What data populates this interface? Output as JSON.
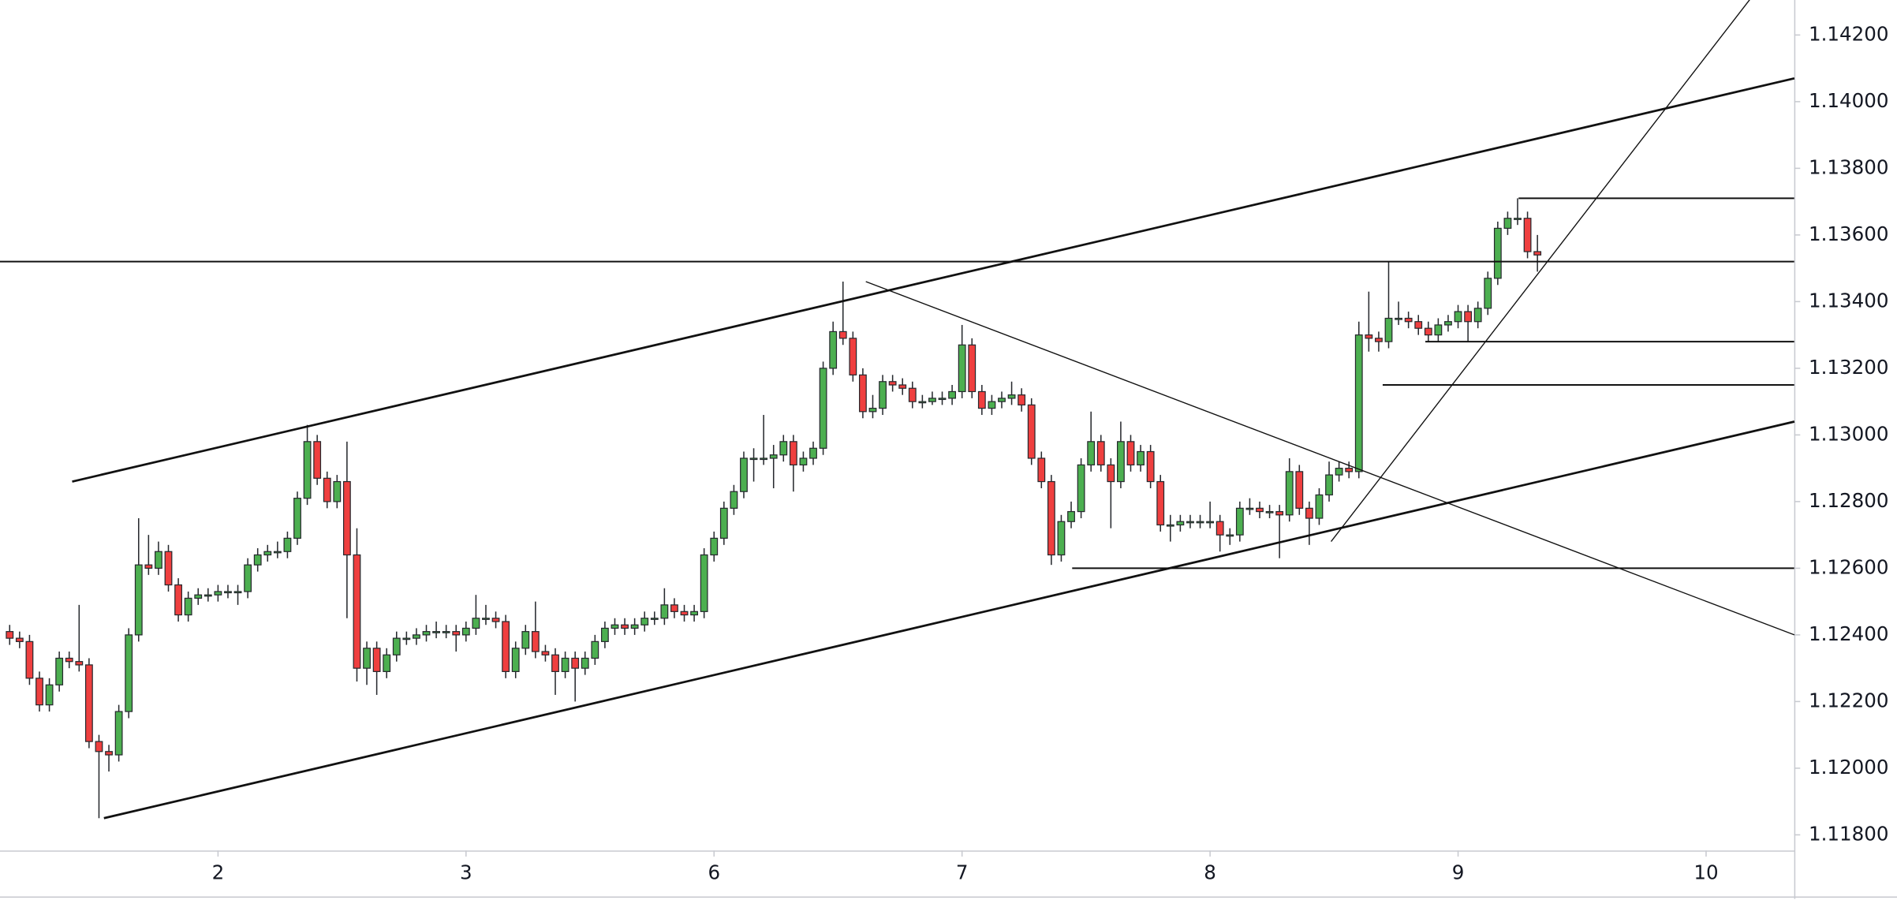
{
  "chart_data": {
    "type": "candlestick",
    "up_color": "#4caf50",
    "down_color": "#ef3f3f",
    "ylim": [
      1.11753,
      1.14305
    ],
    "yticks": [
      {
        "value": 1.118,
        "label": "1.11800"
      },
      {
        "value": 1.12,
        "label": "1.12000"
      },
      {
        "value": 1.122,
        "label": "1.12200"
      },
      {
        "value": 1.124,
        "label": "1.12400"
      },
      {
        "value": 1.126,
        "label": "1.12600"
      },
      {
        "value": 1.128,
        "label": "1.12800"
      },
      {
        "value": 1.13,
        "label": "1.13000"
      },
      {
        "value": 1.132,
        "label": "1.13200"
      },
      {
        "value": 1.134,
        "label": "1.13400"
      },
      {
        "value": 1.136,
        "label": "1.13600"
      },
      {
        "value": 1.138,
        "label": "1.13800"
      },
      {
        "value": 1.14,
        "label": "1.14000"
      },
      {
        "value": 1.142,
        "label": "1.14200"
      }
    ],
    "categories": [
      null,
      null,
      null,
      null,
      null,
      null,
      null,
      null,
      null,
      null,
      null,
      null,
      null,
      null,
      null,
      null,
      null,
      null,
      null,
      null,
      null,
      "2",
      null,
      null,
      null,
      null,
      null,
      null,
      null,
      null,
      null,
      null,
      null,
      null,
      null,
      null,
      null,
      null,
      null,
      null,
      null,
      null,
      null,
      null,
      null,
      null,
      "3",
      null,
      null,
      null,
      null,
      null,
      null,
      null,
      null,
      null,
      null,
      null,
      null,
      null,
      null,
      null,
      null,
      null,
      null,
      null,
      null,
      null,
      null,
      null,
      null,
      "6",
      null,
      null,
      null,
      null,
      null,
      null,
      null,
      null,
      null,
      null,
      null,
      null,
      null,
      null,
      null,
      null,
      null,
      null,
      null,
      null,
      null,
      null,
      null,
      null,
      "7",
      null,
      null,
      null,
      null,
      null,
      null,
      null,
      null,
      null,
      null,
      null,
      null,
      null,
      null,
      null,
      null,
      null,
      null,
      null,
      null,
      null,
      null,
      null,
      null,
      "8",
      null,
      null,
      null,
      null,
      null,
      null,
      null,
      null,
      null,
      null,
      null,
      null,
      null,
      null,
      null,
      null,
      null,
      null,
      null,
      null,
      null,
      null,
      null,
      null,
      "9",
      null,
      null,
      null,
      null,
      null,
      null,
      null,
      null,
      null,
      null,
      null,
      null,
      null,
      null,
      null,
      null,
      null,
      null,
      null,
      null,
      null,
      null,
      null,
      null,
      "10",
      null,
      null,
      null,
      null,
      null,
      null,
      null,
      null
    ],
    "ohlc": [
      [
        1.1241,
        1.1243,
        1.1237,
        1.1239
      ],
      [
        1.1239,
        1.1241,
        1.1236,
        1.1238
      ],
      [
        1.1238,
        1.124,
        1.1225,
        1.1227
      ],
      [
        1.1227,
        1.1229,
        1.1217,
        1.1219
      ],
      [
        1.1219,
        1.1227,
        1.1217,
        1.1225
      ],
      [
        1.1225,
        1.1235,
        1.1223,
        1.1233
      ],
      [
        1.1233,
        1.1235,
        1.123,
        1.1232
      ],
      [
        1.1232,
        1.1249,
        1.1229,
        1.1231
      ],
      [
        1.1231,
        1.1233,
        1.1206,
        1.1208
      ],
      [
        1.1208,
        1.121,
        1.1185,
        1.1205
      ],
      [
        1.1205,
        1.1207,
        1.1199,
        1.1204
      ],
      [
        1.1204,
        1.1219,
        1.1202,
        1.1217
      ],
      [
        1.1217,
        1.1242,
        1.1215,
        1.124
      ],
      [
        1.124,
        1.1275,
        1.1238,
        1.1261
      ],
      [
        1.1261,
        1.127,
        1.1258,
        1.126
      ],
      [
        1.126,
        1.1268,
        1.1258,
        1.1265
      ],
      [
        1.1265,
        1.1267,
        1.1253,
        1.1255
      ],
      [
        1.1255,
        1.1257,
        1.1244,
        1.1246
      ],
      [
        1.1246,
        1.1253,
        1.1244,
        1.1251
      ],
      [
        1.1251,
        1.1254,
        1.1249,
        1.1252
      ],
      [
        1.1252,
        1.1254,
        1.125,
        1.1252
      ],
      [
        1.1252,
        1.1255,
        1.125,
        1.1253
      ],
      [
        1.1253,
        1.1255,
        1.1251,
        1.1253
      ],
      [
        1.1253,
        1.1255,
        1.1249,
        1.1253
      ],
      [
        1.1253,
        1.1263,
        1.1251,
        1.1261
      ],
      [
        1.1261,
        1.1266,
        1.1259,
        1.1264
      ],
      [
        1.1264,
        1.1267,
        1.1262,
        1.1265
      ],
      [
        1.1265,
        1.1268,
        1.1263,
        1.1265
      ],
      [
        1.1265,
        1.1271,
        1.1263,
        1.1269
      ],
      [
        1.1269,
        1.1283,
        1.1267,
        1.1281
      ],
      [
        1.1281,
        1.1303,
        1.1279,
        1.1298
      ],
      [
        1.1298,
        1.13,
        1.1285,
        1.1287
      ],
      [
        1.1287,
        1.1289,
        1.1278,
        1.128
      ],
      [
        1.128,
        1.1288,
        1.1278,
        1.1286
      ],
      [
        1.1286,
        1.1298,
        1.1245,
        1.1264
      ],
      [
        1.1264,
        1.1272,
        1.1226,
        1.123
      ],
      [
        1.123,
        1.1238,
        1.1225,
        1.1236
      ],
      [
        1.1236,
        1.1238,
        1.1222,
        1.1229
      ],
      [
        1.1229,
        1.1236,
        1.1227,
        1.1234
      ],
      [
        1.1234,
        1.1241,
        1.1232,
        1.1239
      ],
      [
        1.1239,
        1.1241,
        1.1237,
        1.1239
      ],
      [
        1.1239,
        1.1242,
        1.1237,
        1.124
      ],
      [
        1.124,
        1.1243,
        1.1238,
        1.1241
      ],
      [
        1.1241,
        1.1244,
        1.1239,
        1.1241
      ],
      [
        1.1241,
        1.1243,
        1.1239,
        1.1241
      ],
      [
        1.1241,
        1.1243,
        1.1235,
        1.124
      ],
      [
        1.124,
        1.1244,
        1.1238,
        1.1242
      ],
      [
        1.1242,
        1.1252,
        1.124,
        1.1245
      ],
      [
        1.1245,
        1.1249,
        1.1243,
        1.1245
      ],
      [
        1.1245,
        1.1247,
        1.1242,
        1.1244
      ],
      [
        1.1244,
        1.1246,
        1.1227,
        1.1229
      ],
      [
        1.1229,
        1.1238,
        1.1227,
        1.1236
      ],
      [
        1.1236,
        1.1243,
        1.1234,
        1.1241
      ],
      [
        1.1241,
        1.125,
        1.1233,
        1.1235
      ],
      [
        1.1235,
        1.1237,
        1.1232,
        1.1234
      ],
      [
        1.1234,
        1.1236,
        1.1222,
        1.1229
      ],
      [
        1.1229,
        1.1235,
        1.1227,
        1.1233
      ],
      [
        1.1233,
        1.1235,
        1.122,
        1.123
      ],
      [
        1.123,
        1.1235,
        1.1228,
        1.1233
      ],
      [
        1.1233,
        1.124,
        1.1231,
        1.1238
      ],
      [
        1.1238,
        1.1244,
        1.1236,
        1.1242
      ],
      [
        1.1242,
        1.1245,
        1.124,
        1.1243
      ],
      [
        1.1243,
        1.1245,
        1.124,
        1.1242
      ],
      [
        1.1242,
        1.1245,
        1.124,
        1.1243
      ],
      [
        1.1243,
        1.1247,
        1.1241,
        1.1245
      ],
      [
        1.1245,
        1.1247,
        1.1243,
        1.1245
      ],
      [
        1.1245,
        1.1254,
        1.1243,
        1.1249
      ],
      [
        1.1249,
        1.1251,
        1.1245,
        1.1247
      ],
      [
        1.1247,
        1.1249,
        1.1244,
        1.1246
      ],
      [
        1.1246,
        1.1249,
        1.1244,
        1.1247
      ],
      [
        1.1247,
        1.1266,
        1.1245,
        1.1264
      ],
      [
        1.1264,
        1.1271,
        1.1262,
        1.1269
      ],
      [
        1.1269,
        1.128,
        1.1267,
        1.1278
      ],
      [
        1.1278,
        1.1285,
        1.1276,
        1.1283
      ],
      [
        1.1283,
        1.1295,
        1.1281,
        1.1293
      ],
      [
        1.1293,
        1.1296,
        1.1286,
        1.1293
      ],
      [
        1.1293,
        1.1306,
        1.1291,
        1.1293
      ],
      [
        1.1293,
        1.1297,
        1.1284,
        1.1294
      ],
      [
        1.1294,
        1.13,
        1.1292,
        1.1298
      ],
      [
        1.1298,
        1.13,
        1.1283,
        1.1291
      ],
      [
        1.1291,
        1.1295,
        1.1289,
        1.1293
      ],
      [
        1.1293,
        1.1298,
        1.1291,
        1.1296
      ],
      [
        1.1296,
        1.1322,
        1.1294,
        1.132
      ],
      [
        1.132,
        1.1334,
        1.1318,
        1.1331
      ],
      [
        1.1331,
        1.1346,
        1.1327,
        1.1329
      ],
      [
        1.1329,
        1.1331,
        1.1316,
        1.1318
      ],
      [
        1.1318,
        1.132,
        1.1305,
        1.1307
      ],
      [
        1.1307,
        1.1312,
        1.1305,
        1.1308
      ],
      [
        1.1308,
        1.1318,
        1.1306,
        1.1316
      ],
      [
        1.1316,
        1.1318,
        1.1313,
        1.1315
      ],
      [
        1.1315,
        1.1317,
        1.1312,
        1.1314
      ],
      [
        1.1314,
        1.1316,
        1.1308,
        1.131
      ],
      [
        1.131,
        1.1312,
        1.1308,
        1.131
      ],
      [
        1.131,
        1.1313,
        1.1309,
        1.1311
      ],
      [
        1.1311,
        1.1313,
        1.1309,
        1.1311
      ],
      [
        1.1311,
        1.1315,
        1.1309,
        1.1313
      ],
      [
        1.1313,
        1.1333,
        1.1311,
        1.1327
      ],
      [
        1.1327,
        1.1329,
        1.1311,
        1.1313
      ],
      [
        1.1313,
        1.1315,
        1.1306,
        1.1308
      ],
      [
        1.1308,
        1.1312,
        1.1306,
        1.131
      ],
      [
        1.131,
        1.1313,
        1.1308,
        1.1311
      ],
      [
        1.1311,
        1.1316,
        1.1309,
        1.1312
      ],
      [
        1.1312,
        1.1314,
        1.1307,
        1.1309
      ],
      [
        1.1309,
        1.1311,
        1.1291,
        1.1293
      ],
      [
        1.1293,
        1.1295,
        1.1284,
        1.1286
      ],
      [
        1.1286,
        1.1288,
        1.1261,
        1.1264
      ],
      [
        1.1264,
        1.1276,
        1.1262,
        1.1274
      ],
      [
        1.1274,
        1.128,
        1.1272,
        1.1277
      ],
      [
        1.1277,
        1.1293,
        1.1275,
        1.1291
      ],
      [
        1.1291,
        1.1307,
        1.1289,
        1.1298
      ],
      [
        1.1298,
        1.13,
        1.1289,
        1.1291
      ],
      [
        1.1291,
        1.1293,
        1.1272,
        1.1286
      ],
      [
        1.1286,
        1.1304,
        1.1284,
        1.1298
      ],
      [
        1.1298,
        1.13,
        1.1289,
        1.1291
      ],
      [
        1.1291,
        1.1297,
        1.1289,
        1.1295
      ],
      [
        1.1295,
        1.1297,
        1.1284,
        1.1286
      ],
      [
        1.1286,
        1.1288,
        1.1271,
        1.1273
      ],
      [
        1.1273,
        1.1276,
        1.1268,
        1.1273
      ],
      [
        1.1273,
        1.1276,
        1.1271,
        1.1274
      ],
      [
        1.1274,
        1.1276,
        1.1272,
        1.1274
      ],
      [
        1.1274,
        1.1276,
        1.1272,
        1.1274
      ],
      [
        1.1274,
        1.128,
        1.1272,
        1.1274
      ],
      [
        1.1274,
        1.1276,
        1.1265,
        1.127
      ],
      [
        1.127,
        1.1272,
        1.1267,
        1.127
      ],
      [
        1.127,
        1.128,
        1.1268,
        1.1278
      ],
      [
        1.1278,
        1.1281,
        1.1276,
        1.1278
      ],
      [
        1.1278,
        1.128,
        1.1275,
        1.1277
      ],
      [
        1.1277,
        1.1279,
        1.1275,
        1.1277
      ],
      [
        1.1277,
        1.1279,
        1.1263,
        1.1276
      ],
      [
        1.1276,
        1.1293,
        1.1274,
        1.1289
      ],
      [
        1.1289,
        1.1291,
        1.1276,
        1.1278
      ],
      [
        1.1278,
        1.128,
        1.1267,
        1.1275
      ],
      [
        1.1275,
        1.1284,
        1.1273,
        1.1282
      ],
      [
        1.1282,
        1.1292,
        1.128,
        1.1288
      ],
      [
        1.1288,
        1.1292,
        1.1286,
        1.129
      ],
      [
        1.129,
        1.1292,
        1.1287,
        1.1289
      ],
      [
        1.1289,
        1.1334,
        1.1287,
        1.133
      ],
      [
        1.133,
        1.1343,
        1.1325,
        1.1329
      ],
      [
        1.1329,
        1.1331,
        1.1325,
        1.1328
      ],
      [
        1.1328,
        1.1352,
        1.1326,
        1.1335
      ],
      [
        1.1335,
        1.134,
        1.1333,
        1.1335
      ],
      [
        1.1335,
        1.1337,
        1.1332,
        1.1334
      ],
      [
        1.1334,
        1.1336,
        1.133,
        1.1332
      ],
      [
        1.1332,
        1.1334,
        1.1328,
        1.133
      ],
      [
        1.133,
        1.1335,
        1.1328,
        1.1333
      ],
      [
        1.1333,
        1.1336,
        1.1331,
        1.1334
      ],
      [
        1.1334,
        1.1339,
        1.1332,
        1.1337
      ],
      [
        1.1337,
        1.1339,
        1.1328,
        1.1334
      ],
      [
        1.1334,
        1.134,
        1.1332,
        1.1338
      ],
      [
        1.1338,
        1.1349,
        1.1336,
        1.1347
      ],
      [
        1.1347,
        1.1364,
        1.1345,
        1.1362
      ],
      [
        1.1362,
        1.1367,
        1.136,
        1.1365
      ],
      [
        1.1365,
        1.1371,
        1.1363,
        1.1365
      ],
      [
        1.1365,
        1.1367,
        1.1353,
        1.1355
      ],
      [
        1.1355,
        1.136,
        1.1349,
        1.1354
      ],
      null,
      null,
      null,
      null,
      null,
      null,
      null,
      null,
      null,
      null,
      null,
      null,
      null,
      null,
      null,
      null,
      null,
      null,
      null,
      null,
      null,
      null,
      null,
      null,
      null
    ],
    "channel_lines": [
      {
        "points": [
          [
            6.3,
            1.1286
          ],
          [
            179.9,
            1.1407
          ]
        ]
      },
      {
        "points": [
          [
            9.5,
            1.1185
          ],
          [
            179.9,
            1.1304
          ]
        ]
      }
    ],
    "trend_lines": [
      {
        "points": [
          [
            86.3,
            1.1346
          ],
          [
            179.9,
            1.124
          ]
        ]
      },
      {
        "points": [
          [
            133.2,
            1.1268
          ],
          [
            175.5,
            1.1431
          ]
        ]
      }
    ],
    "levels": [
      {
        "price": 1.1352,
        "from": -1
      },
      {
        "price": 1.126,
        "from": 107.1
      },
      {
        "price": 1.1315,
        "from": 138.4
      },
      {
        "price": 1.1328,
        "from": 142.7
      },
      {
        "price": 1.1371,
        "from": 152.1
      }
    ]
  }
}
